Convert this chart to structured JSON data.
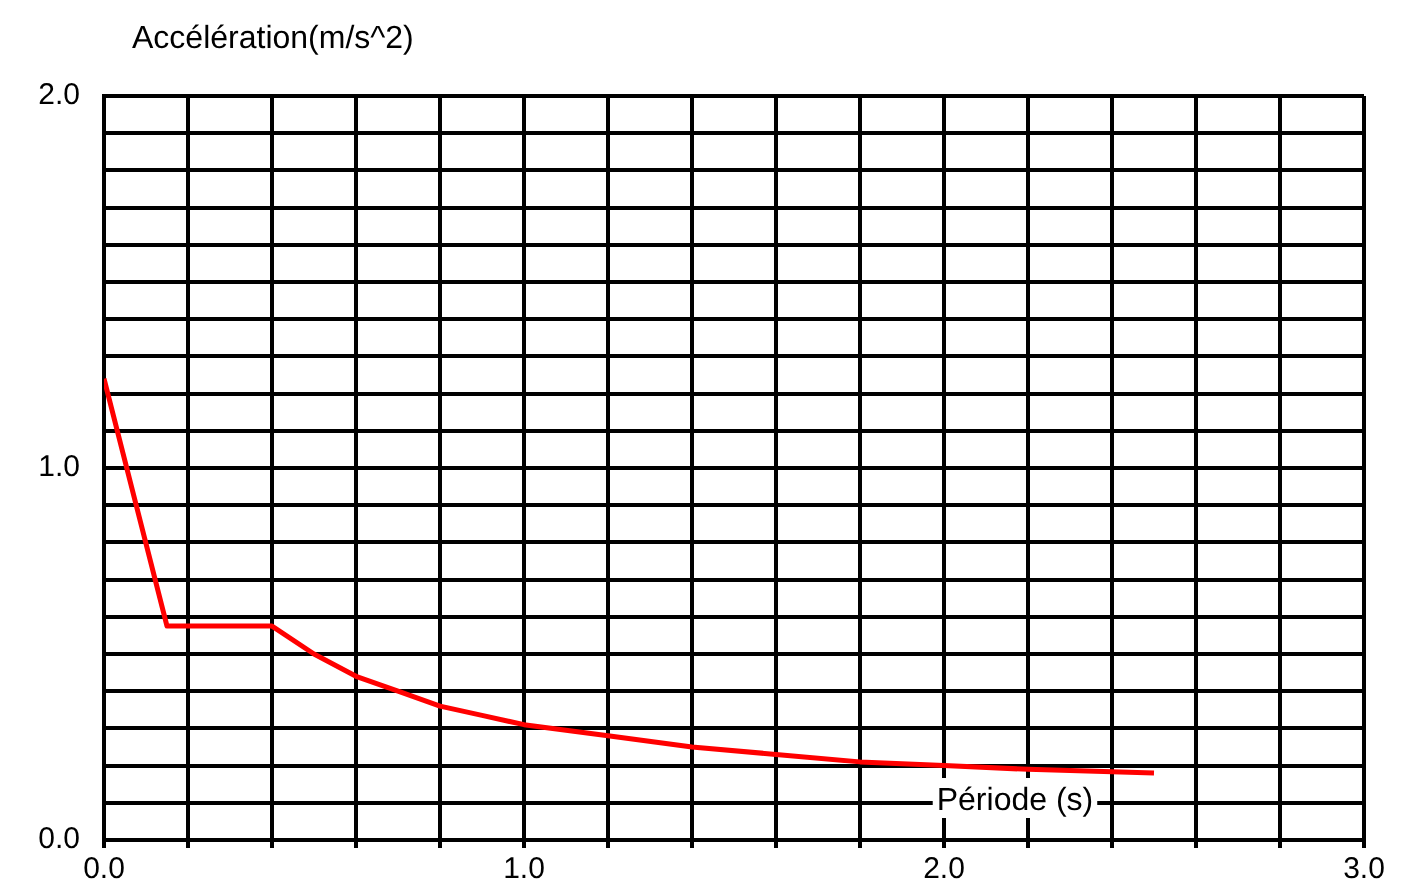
{
  "chart_data": {
    "type": "line",
    "xlabel": "Période (s)",
    "ylabel": "Accélération(m/s^2)",
    "x": [
      0,
      0.15,
      0.4,
      0.5,
      0.6,
      0.7,
      0.8,
      0.9,
      1.0,
      1.2,
      1.4,
      1.6,
      1.8,
      2.0,
      2.2,
      2.5
    ],
    "series": [
      {
        "color": "#ff0000",
        "values": [
          1.24,
          0.575,
          0.575,
          0.5,
          0.44,
          0.4,
          0.36,
          0.335,
          0.31,
          0.28,
          0.25,
          0.23,
          0.21,
          0.2,
          0.19,
          0.18
        ]
      }
    ],
    "xlim": [
      0,
      3
    ],
    "ylim": [
      0,
      2
    ],
    "xticks": [
      {
        "value": 0,
        "label": "0.0"
      },
      {
        "value": 0.2,
        "label": null
      },
      {
        "value": 0.4,
        "label": null
      },
      {
        "value": 0.6,
        "label": null
      },
      {
        "value": 0.8,
        "label": null
      },
      {
        "value": 1,
        "label": "1.0"
      },
      {
        "value": 1.2,
        "label": null
      },
      {
        "value": 1.4,
        "label": null
      },
      {
        "value": 1.6,
        "label": null
      },
      {
        "value": 1.8,
        "label": null
      },
      {
        "value": 2,
        "label": "2.0"
      },
      {
        "value": 2.2,
        "label": null
      },
      {
        "value": 2.4,
        "label": null
      },
      {
        "value": 2.6,
        "label": null
      },
      {
        "value": 2.8,
        "label": null
      },
      {
        "value": 3,
        "label": "3.0"
      }
    ],
    "yticks": [
      {
        "value": 0,
        "label": "0.0"
      },
      {
        "value": 0.1,
        "label": null
      },
      {
        "value": 0.2,
        "label": null
      },
      {
        "value": 0.3,
        "label": null
      },
      {
        "value": 0.4,
        "label": null
      },
      {
        "value": 0.5,
        "label": null
      },
      {
        "value": 0.6,
        "label": null
      },
      {
        "value": 0.7,
        "label": null
      },
      {
        "value": 0.8,
        "label": null
      },
      {
        "value": 0.9,
        "label": null
      },
      {
        "value": 1,
        "label": "1.0"
      },
      {
        "value": 1.1,
        "label": null
      },
      {
        "value": 1.2,
        "label": null
      },
      {
        "value": 1.3,
        "label": null
      },
      {
        "value": 1.4,
        "label": null
      },
      {
        "value": 1.5,
        "label": null
      },
      {
        "value": 1.6,
        "label": null
      },
      {
        "value": 1.7,
        "label": null
      },
      {
        "value": 1.8,
        "label": null
      },
      {
        "value": 1.9,
        "label": null
      },
      {
        "value": 2,
        "label": "2.0"
      }
    ],
    "grid": true,
    "legend": false,
    "marker": "none",
    "line_style": "solid"
  }
}
